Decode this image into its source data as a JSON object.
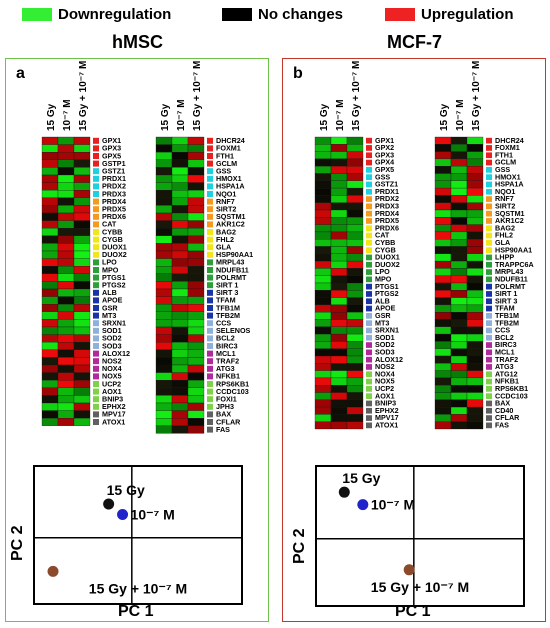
{
  "legend": [
    {
      "label": "Downregulation",
      "color": "#33ee33"
    },
    {
      "label": "No changes",
      "color": "#000000"
    },
    {
      "label": "Upregulation",
      "color": "#ee2222"
    }
  ],
  "panels": [
    {
      "title": "hMSC",
      "letter": "a",
      "border_color": "#6cc24a",
      "col_labels": [
        "15 Gy",
        "10⁻⁷ M",
        "15 Gy + 10⁻⁷ M"
      ],
      "left_genes": [
        "GPX1",
        "GPX3",
        "GPX5",
        "GSTP1",
        "GSTZ1",
        "PRDX1",
        "PRDX2",
        "PRDX3",
        "PRDX4",
        "PRDX5",
        "PRDX6",
        "CAT",
        "CYBB",
        "CYGB",
        "DUOX1",
        "DUOX2",
        "LPO",
        "MPO",
        "PTGS1",
        "PTGS2",
        "ALB",
        "APOE",
        "GSR",
        "MT3",
        "SRXN1",
        "SOD1",
        "SOD2",
        "SOD3",
        "ALOX12",
        "NOS2",
        "NOX4",
        "NOX5",
        "UCP2",
        "AOX1",
        "BNIP3",
        "EPHX2",
        "MPV17",
        "ATOX1"
      ],
      "right_genes": [
        "DHCR24",
        "FOXM1",
        "FTH1",
        "GCLM",
        "GSS",
        "HMOX1",
        "HSPA1A",
        "NQO1",
        "RNF7",
        "SIRT2",
        "SQSTM1",
        "AKR1C2",
        "BAG2",
        "FHL2",
        "GLA",
        "HSP90AA1",
        "MRPL43",
        "NDUFB11",
        "POLRMT",
        "SIRT 1",
        "SIRT 3",
        "TFAM",
        "TFB1M",
        "TFB2M",
        "CCS",
        "SELENOS",
        "BCL2",
        "BIRC3",
        "MCL1",
        "TRAF2",
        "ATG3",
        "NFKB1",
        "RPS6KB1",
        "CCDC103",
        "FOXI1",
        "JPH3",
        "BAX",
        "CFLAR",
        "FAS"
      ],
      "pca": {
        "x_label": "PC 1",
        "y_label": "PC 2",
        "points": [
          {
            "label": "15 Gy",
            "color": "#111111",
            "pc1": -0.25,
            "pc2": 0.55
          },
          {
            "label": "10⁻⁷ M",
            "color": "#2222cc",
            "pc1": -0.1,
            "pc2": 0.38
          },
          {
            "label": "15 Gy + 10⁻⁷ M",
            "color": "#8b4a2b",
            "pc1": -0.85,
            "pc2": -0.55
          }
        ]
      }
    },
    {
      "title": "MCF-7",
      "letter": "b",
      "border_color": "#c0392b",
      "col_labels": [
        "15 Gy",
        "10⁻⁷ M",
        "15 Gy + 10⁻⁷ M"
      ],
      "left_genes": [
        "GPX1",
        "GPX2",
        "GPX3",
        "GPX4",
        "GPX5",
        "GSS",
        "GSTZ1",
        "PRDX1",
        "PRDX2",
        "PRDX3",
        "PRDX4",
        "PRDX5",
        "PRDX6",
        "CAT",
        "CYBB",
        "CYGB",
        "DUOX1",
        "DUOX2",
        "LPO",
        "MPO",
        "PTGS1",
        "PTGS2",
        "ALB",
        "APOE",
        "GSR",
        "MT3",
        "SRXN1",
        "SOD1",
        "SOD2",
        "SOD3",
        "ALOX12",
        "NOS2",
        "NOX4",
        "NOX5",
        "UCP2",
        "AOX1",
        "BNIP3",
        "EPHX2",
        "MPV17",
        "ATOX1"
      ],
      "right_genes": [
        "DHCR24",
        "FOXM1",
        "FTH1",
        "GCLM",
        "GSS",
        "HMOX1",
        "HSPA1A",
        "NQO1",
        "RNF7",
        "SIRT2",
        "SQSTM1",
        "AKR1C2",
        "BAG2",
        "FHL2",
        "GLA",
        "HSP90AA1",
        "LHPP",
        "TRAPPC6A",
        "MRPL43",
        "NDUFB11",
        "POLRMT",
        "SIRT 1",
        "SIRT 3",
        "TFAM",
        "TFB1M",
        "TFB2M",
        "CCS",
        "BCL2",
        "BIRC3",
        "MCL1",
        "TRAF2",
        "ATG3",
        "ATG12",
        "NFKB1",
        "RPS6KB1",
        "CCDC103",
        "BAX",
        "CD40",
        "CFLAR",
        "FAS"
      ],
      "pca": {
        "x_label": "PC 1",
        "y_label": "PC 2",
        "points": [
          {
            "label": "15 Gy",
            "color": "#111111",
            "pc1": -0.75,
            "pc2": 0.75
          },
          {
            "label": "10⁻⁷ M",
            "color": "#2222cc",
            "pc1": -0.55,
            "pc2": 0.55
          },
          {
            "label": "15 Gy + 10⁻⁷ M",
            "color": "#8b4a2b",
            "pc1": -0.05,
            "pc2": -0.5
          }
        ]
      }
    }
  ]
}
